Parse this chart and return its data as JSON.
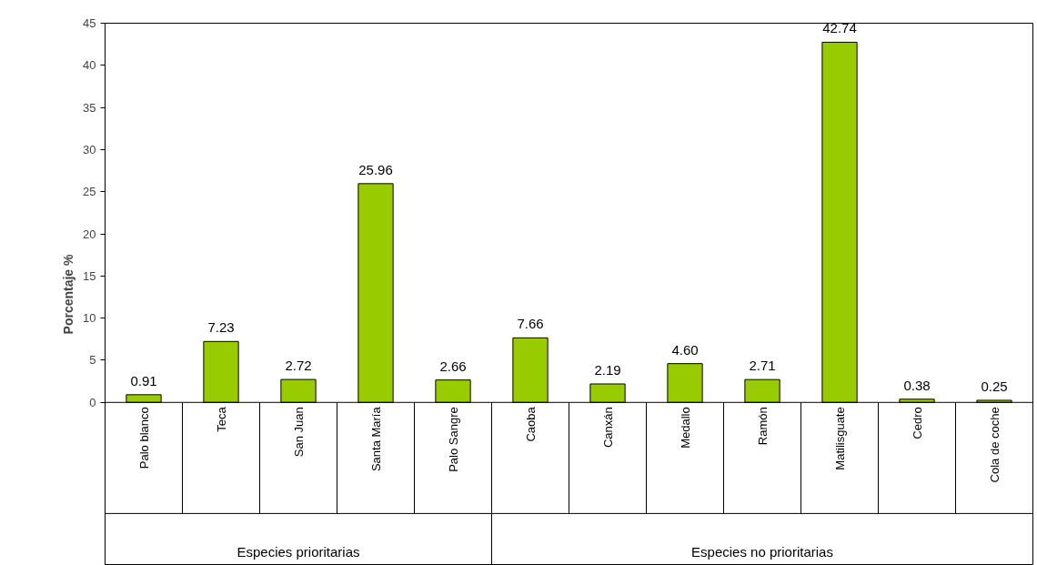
{
  "chart_data": {
    "type": "bar",
    "ylabel": "Porcentaje %",
    "categories": [
      "Palo blanco",
      "Teca",
      "San Juan",
      "Santa María",
      "Palo Sangre",
      "Caoba",
      "Canxán",
      "Medallo",
      "Ramón",
      "Matilisguate",
      "Cedro",
      "Cola de coche"
    ],
    "values": [
      0.91,
      7.23,
      2.72,
      25.96,
      2.66,
      7.66,
      2.19,
      4.6,
      2.71,
      42.74,
      0.38,
      0.25
    ],
    "value_labels": [
      "0.91",
      "7.23",
      "2.72",
      "25.96",
      "2.66",
      "7.66",
      "2.19",
      "4.60",
      "2.71",
      "42.74",
      "0.38",
      "0.25"
    ],
    "color": "#99cc00",
    "ylim": [
      0,
      45
    ],
    "yticks": [
      0,
      5,
      10,
      15,
      20,
      25,
      30,
      35,
      40,
      45
    ],
    "grid": false,
    "annotations": [
      "Especies prioritarias",
      "Especies no prioritarias"
    ]
  }
}
